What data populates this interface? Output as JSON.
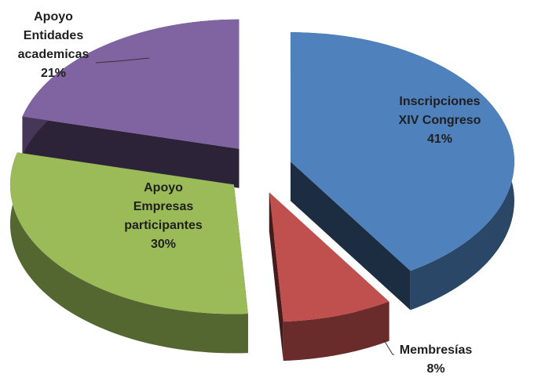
{
  "chart_data": {
    "type": "pie3d",
    "categories": [
      "Inscripciones\nXIV Congreso",
      "Membresías",
      "Apoyo\nEmpresas\nparticipantes",
      "Apoyo\nEntidades\nacademicas"
    ],
    "values": [
      41,
      8,
      30,
      21
    ],
    "value_labels": [
      "41%",
      "8%",
      "30%",
      "21%"
    ],
    "colors": [
      "#4f81bd",
      "#c0504d",
      "#9bbb59",
      "#8064a2"
    ]
  }
}
